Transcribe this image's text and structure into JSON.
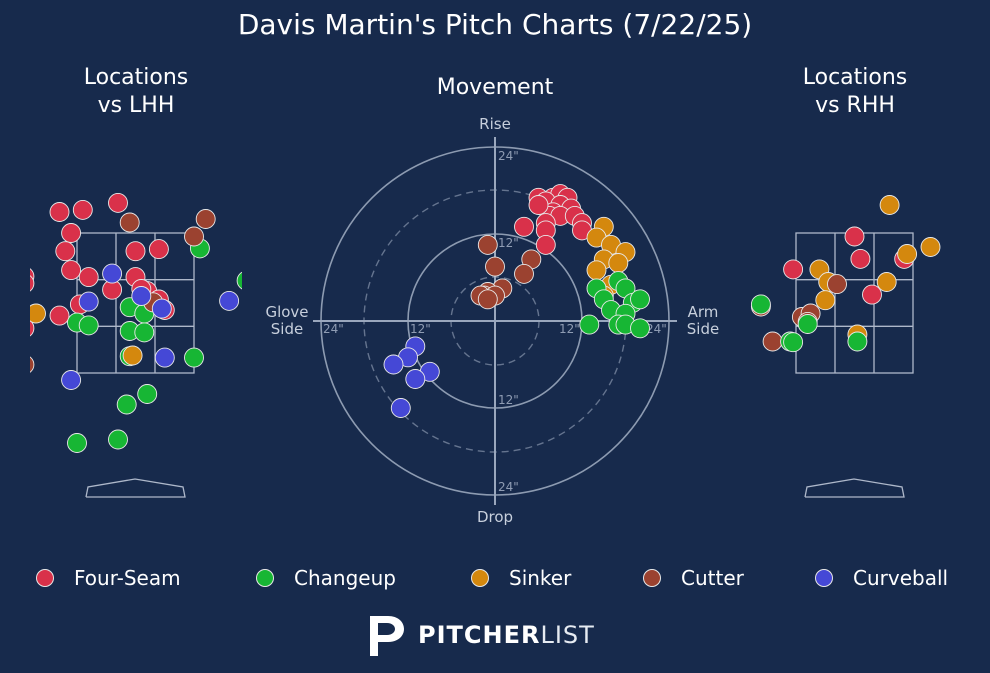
{
  "title": "Davis Martin's Pitch Charts (7/22/25)",
  "panels": {
    "lhh_title_line1": "Locations",
    "lhh_title_line2": "vs LHH",
    "movement_title": "Movement",
    "rhh_title_line1": "Locations",
    "rhh_title_line2": "vs RHH"
  },
  "movement_labels": {
    "top": "Rise",
    "bottom": "Drop",
    "left_line1": "Glove",
    "left_line2": "Side",
    "right_line1": "Arm",
    "right_line2": "Side",
    "ring_24_top": "24\"",
    "ring_12_top": "12\"",
    "ring_12_bottom": "12\"",
    "ring_24_bottom": "24\"",
    "ring_24_left": "24\"",
    "ring_12_left": "12\"",
    "ring_12_right": "12\"",
    "ring_24_right": "24\""
  },
  "colors": {
    "background": "#172a4c",
    "Four-Seam": "#d9314a",
    "Changeup": "#17b634",
    "Sinker": "#d4880e",
    "Cutter": "#9b4230",
    "Curveball": "#4548d6"
  },
  "legend": [
    {
      "label": "Four-Seam",
      "key": "Four-Seam"
    },
    {
      "label": "Changeup",
      "key": "Changeup"
    },
    {
      "label": "Sinker",
      "key": "Sinker"
    },
    {
      "label": "Cutter",
      "key": "Cutter"
    },
    {
      "label": "Curveball",
      "key": "Curveball"
    }
  ],
  "logo": {
    "bold": "PITCHER",
    "light": "LIST"
  },
  "chart_data": [
    {
      "type": "scatter",
      "title": "Locations vs LHH",
      "x_unit": "horizontal location (pixel-normalized, zone -1..1)",
      "points": [
        {
          "pitch": "Four-Seam",
          "x": -1.3,
          "y": 1.3
        },
        {
          "pitch": "Four-Seam",
          "x": -0.9,
          "y": 1.33
        },
        {
          "pitch": "Four-Seam",
          "x": -0.3,
          "y": 1.43
        },
        {
          "pitch": "Four-Seam",
          "x": -1.1,
          "y": 1.0
        },
        {
          "pitch": "Four-Seam",
          "x": -1.2,
          "y": 0.74
        },
        {
          "pitch": "Four-Seam",
          "x": 0.0,
          "y": 0.74
        },
        {
          "pitch": "Four-Seam",
          "x": 0.4,
          "y": 0.77
        },
        {
          "pitch": "Four-Seam",
          "x": -1.1,
          "y": 0.47
        },
        {
          "pitch": "Four-Seam",
          "x": -0.8,
          "y": 0.37
        },
        {
          "pitch": "Four-Seam",
          "x": 0.0,
          "y": 0.37
        },
        {
          "pitch": "Four-Seam",
          "x": -1.9,
          "y": 0.38
        },
        {
          "pitch": "Four-Seam",
          "x": -1.9,
          "y": 0.28
        },
        {
          "pitch": "Four-Seam",
          "x": -0.4,
          "y": 0.19
        },
        {
          "pitch": "Four-Seam",
          "x": 0.2,
          "y": 0.17
        },
        {
          "pitch": "Four-Seam",
          "x": 0.4,
          "y": 0.05
        },
        {
          "pitch": "Four-Seam",
          "x": -0.95,
          "y": -0.02
        },
        {
          "pitch": "Four-Seam",
          "x": 0.5,
          "y": -0.1
        },
        {
          "pitch": "Four-Seam",
          "x": -1.3,
          "y": -0.18
        },
        {
          "pitch": "Four-Seam",
          "x": -1.9,
          "y": -0.36
        },
        {
          "pitch": "Four-Seam",
          "x": 0.1,
          "y": 0.2
        },
        {
          "pitch": "Changeup",
          "x": 1.1,
          "y": 0.78
        },
        {
          "pitch": "Changeup",
          "x": 1.9,
          "y": 0.32
        },
        {
          "pitch": "Changeup",
          "x": -0.1,
          "y": -0.06
        },
        {
          "pitch": "Changeup",
          "x": 0.15,
          "y": -0.15
        },
        {
          "pitch": "Changeup",
          "x": -1.0,
          "y": -0.28
        },
        {
          "pitch": "Changeup",
          "x": -0.8,
          "y": -0.32
        },
        {
          "pitch": "Changeup",
          "x": -0.1,
          "y": -0.4
        },
        {
          "pitch": "Changeup",
          "x": 0.15,
          "y": -0.42
        },
        {
          "pitch": "Changeup",
          "x": 1.0,
          "y": -0.78
        },
        {
          "pitch": "Changeup",
          "x": -0.1,
          "y": -0.76
        },
        {
          "pitch": "Changeup",
          "x": -2.0,
          "y": -0.78
        },
        {
          "pitch": "Changeup",
          "x": 0.2,
          "y": -1.3
        },
        {
          "pitch": "Changeup",
          "x": -0.15,
          "y": -1.45
        },
        {
          "pitch": "Changeup",
          "x": -1.0,
          "y": -2.0
        },
        {
          "pitch": "Changeup",
          "x": -0.3,
          "y": -1.95
        },
        {
          "pitch": "Sinker",
          "x": -1.7,
          "y": -0.15
        },
        {
          "pitch": "Sinker",
          "x": -0.05,
          "y": -0.75
        },
        {
          "pitch": "Cutter",
          "x": 1.2,
          "y": 1.2
        },
        {
          "pitch": "Cutter",
          "x": -0.1,
          "y": 1.15
        },
        {
          "pitch": "Cutter",
          "x": 1.0,
          "y": 0.95
        },
        {
          "pitch": "Cutter",
          "x": 0.3,
          "y": 0.01
        },
        {
          "pitch": "Cutter",
          "x": -1.9,
          "y": -0.88
        },
        {
          "pitch": "Curveball",
          "x": -0.4,
          "y": 0.42
        },
        {
          "pitch": "Curveball",
          "x": 0.1,
          "y": 0.1
        },
        {
          "pitch": "Curveball",
          "x": -0.8,
          "y": 0.02
        },
        {
          "pitch": "Curveball",
          "x": 0.45,
          "y": -0.08
        },
        {
          "pitch": "Curveball",
          "x": 1.6,
          "y": 0.03
        },
        {
          "pitch": "Curveball",
          "x": 0.5,
          "y": -0.78
        },
        {
          "pitch": "Curveball",
          "x": -1.1,
          "y": -1.1
        }
      ]
    },
    {
      "type": "scatter",
      "title": "Movement",
      "x_unit": "horizontal break (inches, + = arm side)",
      "y_unit": "induced vertical break (inches, + = rise)",
      "rings": [
        6,
        12,
        18,
        24
      ],
      "points": [
        {
          "pitch": "Four-Seam",
          "x": 6,
          "y": 17
        },
        {
          "pitch": "Four-Seam",
          "x": 8,
          "y": 17
        },
        {
          "pitch": "Four-Seam",
          "x": 9,
          "y": 17.5
        },
        {
          "pitch": "Four-Seam",
          "x": 10,
          "y": 17
        },
        {
          "pitch": "Four-Seam",
          "x": 7,
          "y": 16.5
        },
        {
          "pitch": "Four-Seam",
          "x": 9,
          "y": 16
        },
        {
          "pitch": "Four-Seam",
          "x": 10.5,
          "y": 15.5
        },
        {
          "pitch": "Four-Seam",
          "x": 8,
          "y": 15
        },
        {
          "pitch": "Four-Seam",
          "x": 7.5,
          "y": 14.5
        },
        {
          "pitch": "Four-Seam",
          "x": 9,
          "y": 14.5
        },
        {
          "pitch": "Four-Seam",
          "x": 11,
          "y": 14.5
        },
        {
          "pitch": "Four-Seam",
          "x": 12,
          "y": 13.5
        },
        {
          "pitch": "Four-Seam",
          "x": 7,
          "y": 13.5
        },
        {
          "pitch": "Four-Seam",
          "x": 4,
          "y": 13
        },
        {
          "pitch": "Four-Seam",
          "x": 7,
          "y": 12.5
        },
        {
          "pitch": "Four-Seam",
          "x": 12,
          "y": 12.5
        },
        {
          "pitch": "Four-Seam",
          "x": 7,
          "y": 10.5
        },
        {
          "pitch": "Four-Seam",
          "x": 6,
          "y": 16
        },
        {
          "pitch": "Sinker",
          "x": 15,
          "y": 13
        },
        {
          "pitch": "Sinker",
          "x": 14,
          "y": 11.5
        },
        {
          "pitch": "Sinker",
          "x": 16,
          "y": 10.5
        },
        {
          "pitch": "Sinker",
          "x": 18,
          "y": 9.5
        },
        {
          "pitch": "Sinker",
          "x": 15,
          "y": 8.5
        },
        {
          "pitch": "Sinker",
          "x": 17,
          "y": 8
        },
        {
          "pitch": "Sinker",
          "x": 14,
          "y": 7
        },
        {
          "pitch": "Sinker",
          "x": 16,
          "y": 5
        },
        {
          "pitch": "Sinker",
          "x": 15,
          "y": 3.5
        },
        {
          "pitch": "Changeup",
          "x": 17,
          "y": 5.5
        },
        {
          "pitch": "Changeup",
          "x": 14,
          "y": 4.5
        },
        {
          "pitch": "Changeup",
          "x": 18,
          "y": 4.5
        },
        {
          "pitch": "Changeup",
          "x": 15,
          "y": 3
        },
        {
          "pitch": "Changeup",
          "x": 19,
          "y": 2.5
        },
        {
          "pitch": "Changeup",
          "x": 20,
          "y": 3
        },
        {
          "pitch": "Changeup",
          "x": 16,
          "y": 1.5
        },
        {
          "pitch": "Changeup",
          "x": 18,
          "y": 1
        },
        {
          "pitch": "Changeup",
          "x": 13,
          "y": -0.5
        },
        {
          "pitch": "Changeup",
          "x": 17,
          "y": -0.5
        },
        {
          "pitch": "Changeup",
          "x": 18,
          "y": -0.5
        },
        {
          "pitch": "Changeup",
          "x": 20,
          "y": -1
        },
        {
          "pitch": "Cutter",
          "x": -1,
          "y": 10.5
        },
        {
          "pitch": "Cutter",
          "x": 0,
          "y": 7.5
        },
        {
          "pitch": "Cutter",
          "x": 5,
          "y": 8.5
        },
        {
          "pitch": "Cutter",
          "x": 4,
          "y": 6.5
        },
        {
          "pitch": "Cutter",
          "x": 1,
          "y": 4.5
        },
        {
          "pitch": "Cutter",
          "x": -1,
          "y": 4
        },
        {
          "pitch": "Cutter",
          "x": -1.5,
          "y": 3.5
        },
        {
          "pitch": "Cutter",
          "x": -2,
          "y": 3.5
        },
        {
          "pitch": "Cutter",
          "x": 0,
          "y": 3.5
        },
        {
          "pitch": "Cutter",
          "x": -1,
          "y": 3
        },
        {
          "pitch": "Curveball",
          "x": -11,
          "y": -3.5
        },
        {
          "pitch": "Curveball",
          "x": -12,
          "y": -5
        },
        {
          "pitch": "Curveball",
          "x": -14,
          "y": -6
        },
        {
          "pitch": "Curveball",
          "x": -9,
          "y": -7
        },
        {
          "pitch": "Curveball",
          "x": -11,
          "y": -8
        },
        {
          "pitch": "Curveball",
          "x": -13,
          "y": -12
        }
      ]
    },
    {
      "type": "scatter",
      "title": "Locations vs RHH",
      "points": [
        {
          "pitch": "Four-Seam",
          "x": 0.0,
          "y": 0.95
        },
        {
          "pitch": "Four-Seam",
          "x": 0.1,
          "y": 0.63
        },
        {
          "pitch": "Four-Seam",
          "x": 0.85,
          "y": 0.63
        },
        {
          "pitch": "Four-Seam",
          "x": -1.05,
          "y": 0.48
        },
        {
          "pitch": "Four-Seam",
          "x": 0.3,
          "y": 0.12
        },
        {
          "pitch": "Sinker",
          "x": 0.6,
          "y": 1.4
        },
        {
          "pitch": "Sinker",
          "x": 1.3,
          "y": 0.8
        },
        {
          "pitch": "Sinker",
          "x": 0.9,
          "y": 0.7
        },
        {
          "pitch": "Sinker",
          "x": -0.6,
          "y": 0.48
        },
        {
          "pitch": "Sinker",
          "x": -0.45,
          "y": 0.3
        },
        {
          "pitch": "Sinker",
          "x": 0.55,
          "y": 0.3
        },
        {
          "pitch": "Sinker",
          "x": -0.5,
          "y": 0.04
        },
        {
          "pitch": "Sinker",
          "x": 0.05,
          "y": -0.45
        },
        {
          "pitch": "Cutter",
          "x": -0.3,
          "y": 0.27
        },
        {
          "pitch": "Cutter",
          "x": -0.9,
          "y": -0.2
        },
        {
          "pitch": "Cutter",
          "x": -0.75,
          "y": -0.15
        },
        {
          "pitch": "Cutter",
          "x": -0.8,
          "y": -0.27
        },
        {
          "pitch": "Cutter",
          "x": -1.6,
          "y": -0.05
        },
        {
          "pitch": "Cutter",
          "x": -1.4,
          "y": -0.55
        },
        {
          "pitch": "Changeup",
          "x": -1.6,
          "y": -0.02
        },
        {
          "pitch": "Changeup",
          "x": -0.8,
          "y": -0.3
        },
        {
          "pitch": "Changeup",
          "x": -1.1,
          "y": -0.55
        },
        {
          "pitch": "Changeup",
          "x": -1.05,
          "y": -0.56
        },
        {
          "pitch": "Changeup",
          "x": 0.05,
          "y": -0.55
        }
      ]
    }
  ]
}
